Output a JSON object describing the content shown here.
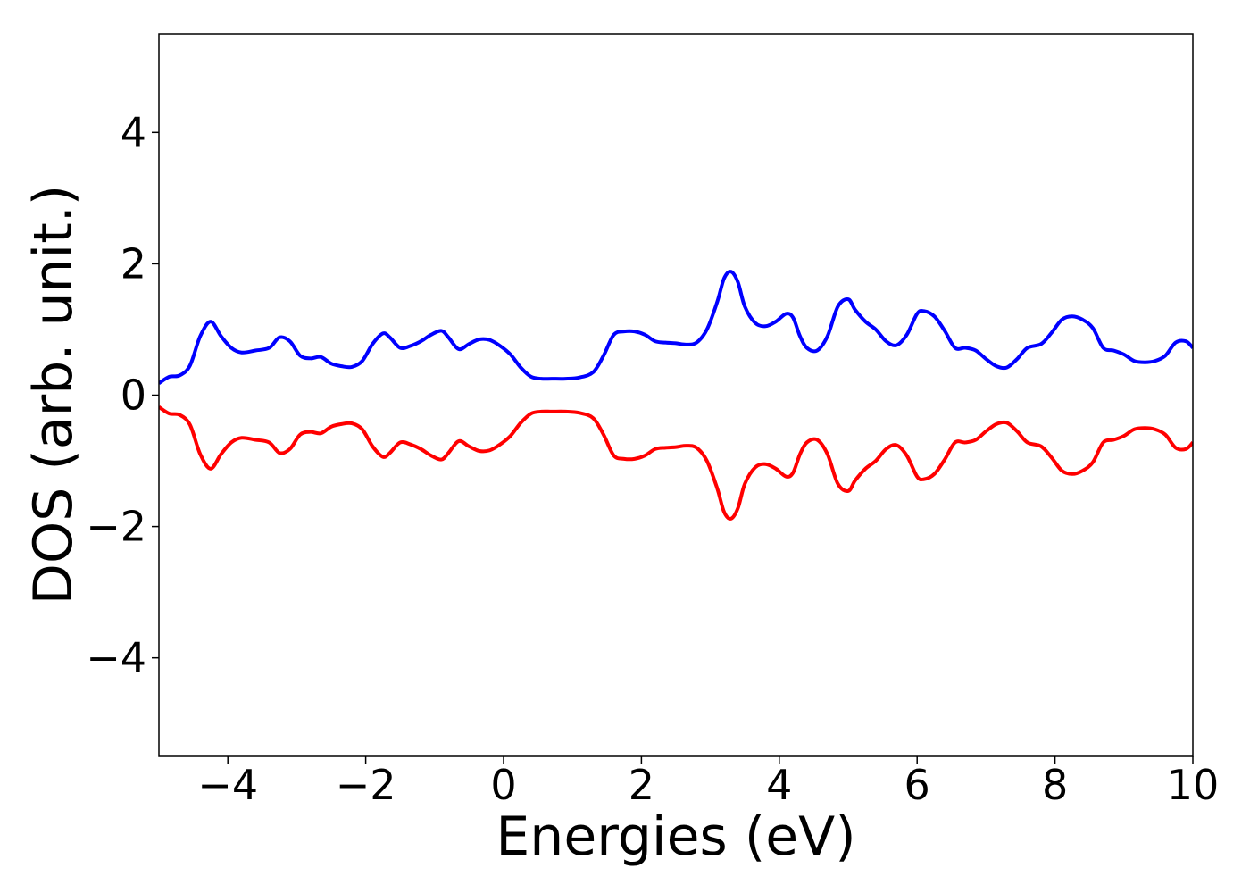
{
  "chart_data": {
    "type": "line",
    "xlabel": "Energies (eV)",
    "ylabel": "DOS (arb. unit.)",
    "xlim": [
      -5,
      10
    ],
    "ylim": [
      -5.5,
      5.5
    ],
    "xticks": [
      -4,
      -2,
      0,
      2,
      4,
      6,
      8,
      10
    ],
    "xtick_labels": [
      "−4",
      "−2",
      "0",
      "2",
      "4",
      "6",
      "8",
      "10"
    ],
    "yticks": [
      -4,
      -2,
      0,
      2,
      4
    ],
    "ytick_labels": [
      "−4",
      "−2",
      "0",
      "2",
      "4"
    ],
    "grid": false,
    "series": [
      {
        "color": "#0000ff",
        "x": [
          -5.0,
          -4.85,
          -4.7,
          -4.55,
          -4.4,
          -4.25,
          -4.1,
          -3.95,
          -3.8,
          -3.6,
          -3.4,
          -3.25,
          -3.1,
          -2.95,
          -2.8,
          -2.65,
          -2.5,
          -2.35,
          -2.2,
          -2.05,
          -1.9,
          -1.75,
          -1.65,
          -1.5,
          -1.35,
          -1.2,
          -1.05,
          -0.9,
          -0.8,
          -0.65,
          -0.5,
          -0.35,
          -0.2,
          -0.05,
          0.1,
          0.25,
          0.4,
          0.55,
          0.7,
          0.9,
          1.1,
          1.3,
          1.45,
          1.6,
          1.75,
          1.9,
          2.05,
          2.2,
          2.35,
          2.5,
          2.65,
          2.8,
          2.95,
          3.1,
          3.2,
          3.3,
          3.4,
          3.5,
          3.65,
          3.8,
          3.95,
          4.1,
          4.2,
          4.3,
          4.4,
          4.55,
          4.7,
          4.85,
          5.0,
          5.1,
          5.25,
          5.4,
          5.55,
          5.7,
          5.85,
          6.0,
          6.1,
          6.25,
          6.4,
          6.55,
          6.7,
          6.85,
          7.0,
          7.15,
          7.3,
          7.45,
          7.6,
          7.8,
          7.95,
          8.1,
          8.25,
          8.4,
          8.55,
          8.7,
          8.85,
          9.0,
          9.15,
          9.3,
          9.45,
          9.6,
          9.75,
          9.9,
          10.0
        ],
        "y": [
          0.18,
          0.28,
          0.3,
          0.45,
          0.9,
          1.12,
          0.9,
          0.72,
          0.65,
          0.68,
          0.72,
          0.88,
          0.82,
          0.6,
          0.56,
          0.58,
          0.48,
          0.44,
          0.43,
          0.52,
          0.78,
          0.94,
          0.88,
          0.72,
          0.75,
          0.82,
          0.92,
          0.98,
          0.88,
          0.7,
          0.78,
          0.85,
          0.84,
          0.75,
          0.62,
          0.42,
          0.28,
          0.25,
          0.25,
          0.25,
          0.27,
          0.35,
          0.6,
          0.92,
          0.97,
          0.97,
          0.92,
          0.82,
          0.8,
          0.79,
          0.77,
          0.8,
          1.0,
          1.42,
          1.78,
          1.88,
          1.72,
          1.35,
          1.1,
          1.05,
          1.12,
          1.24,
          1.18,
          0.9,
          0.72,
          0.68,
          0.9,
          1.35,
          1.46,
          1.3,
          1.12,
          1.0,
          0.82,
          0.76,
          0.92,
          1.24,
          1.28,
          1.2,
          0.98,
          0.72,
          0.72,
          0.68,
          0.55,
          0.44,
          0.42,
          0.55,
          0.72,
          0.78,
          0.95,
          1.15,
          1.2,
          1.15,
          1.02,
          0.72,
          0.68,
          0.62,
          0.52,
          0.5,
          0.52,
          0.6,
          0.8,
          0.82,
          0.72
        ]
      },
      {
        "color": "#ff0000",
        "x": [
          -5.0,
          -4.85,
          -4.7,
          -4.55,
          -4.4,
          -4.25,
          -4.1,
          -3.95,
          -3.8,
          -3.6,
          -3.4,
          -3.25,
          -3.1,
          -2.95,
          -2.8,
          -2.65,
          -2.5,
          -2.35,
          -2.2,
          -2.05,
          -1.9,
          -1.75,
          -1.65,
          -1.5,
          -1.35,
          -1.2,
          -1.05,
          -0.9,
          -0.8,
          -0.65,
          -0.5,
          -0.35,
          -0.2,
          -0.05,
          0.1,
          0.25,
          0.4,
          0.55,
          0.7,
          0.9,
          1.1,
          1.3,
          1.45,
          1.6,
          1.75,
          1.9,
          2.05,
          2.2,
          2.35,
          2.5,
          2.65,
          2.8,
          2.95,
          3.1,
          3.2,
          3.3,
          3.4,
          3.5,
          3.65,
          3.8,
          3.95,
          4.1,
          4.2,
          4.3,
          4.4,
          4.55,
          4.7,
          4.85,
          5.0,
          5.1,
          5.25,
          5.4,
          5.55,
          5.7,
          5.85,
          6.0,
          6.1,
          6.25,
          6.4,
          6.55,
          6.7,
          6.85,
          7.0,
          7.15,
          7.3,
          7.45,
          7.6,
          7.8,
          7.95,
          8.1,
          8.25,
          8.4,
          8.55,
          8.7,
          8.85,
          9.0,
          9.15,
          9.3,
          9.45,
          9.6,
          9.75,
          9.9,
          10.0
        ],
        "y": [
          -0.18,
          -0.28,
          -0.3,
          -0.45,
          -0.9,
          -1.12,
          -0.9,
          -0.72,
          -0.65,
          -0.68,
          -0.72,
          -0.88,
          -0.82,
          -0.6,
          -0.56,
          -0.58,
          -0.48,
          -0.44,
          -0.43,
          -0.52,
          -0.78,
          -0.94,
          -0.88,
          -0.72,
          -0.75,
          -0.82,
          -0.92,
          -0.98,
          -0.88,
          -0.7,
          -0.78,
          -0.85,
          -0.84,
          -0.75,
          -0.62,
          -0.42,
          -0.28,
          -0.25,
          -0.25,
          -0.25,
          -0.27,
          -0.35,
          -0.6,
          -0.92,
          -0.97,
          -0.97,
          -0.92,
          -0.82,
          -0.8,
          -0.79,
          -0.77,
          -0.8,
          -1.0,
          -1.42,
          -1.78,
          -1.88,
          -1.72,
          -1.35,
          -1.1,
          -1.05,
          -1.12,
          -1.24,
          -1.18,
          -0.9,
          -0.72,
          -0.68,
          -0.9,
          -1.35,
          -1.46,
          -1.3,
          -1.12,
          -1.0,
          -0.82,
          -0.76,
          -0.92,
          -1.24,
          -1.28,
          -1.2,
          -0.98,
          -0.72,
          -0.72,
          -0.68,
          -0.55,
          -0.44,
          -0.42,
          -0.55,
          -0.72,
          -0.78,
          -0.95,
          -1.15,
          -1.2,
          -1.15,
          -1.02,
          -0.72,
          -0.68,
          -0.62,
          -0.52,
          -0.5,
          -0.52,
          -0.6,
          -0.8,
          -0.82,
          -0.72
        ]
      }
    ]
  }
}
